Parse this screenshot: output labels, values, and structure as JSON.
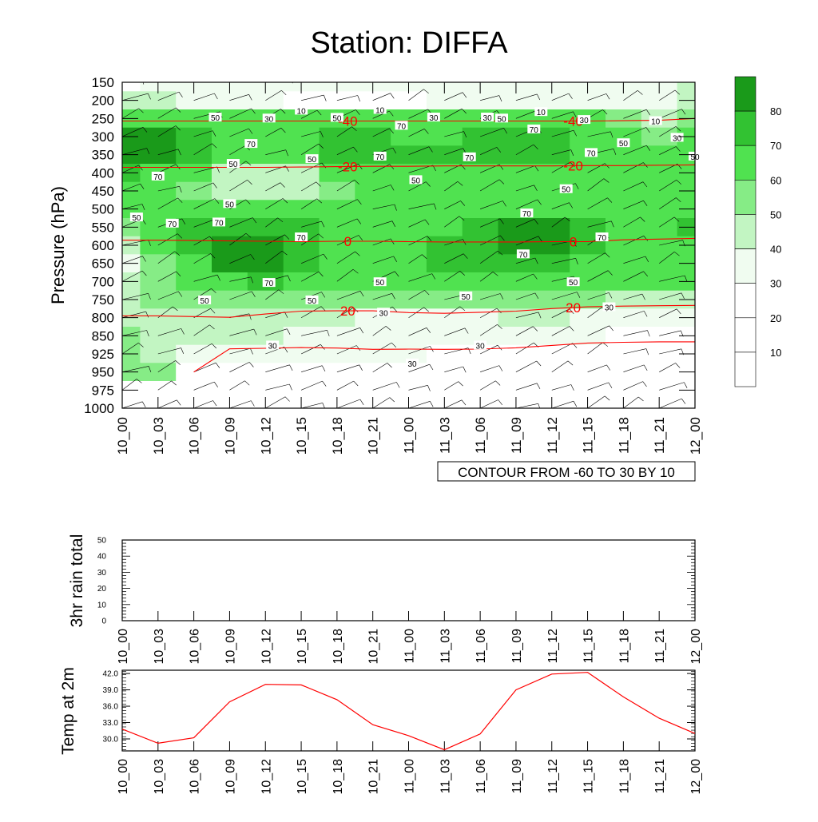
{
  "title": "Station: DIFFA",
  "x_ticks": [
    "10_00",
    "10_03",
    "10_06",
    "10_09",
    "10_12",
    "10_15",
    "10_18",
    "10_21",
    "11_00",
    "11_03",
    "11_06",
    "11_09",
    "11_12",
    "11_15",
    "11_18",
    "11_21",
    "12_00"
  ],
  "contour_note": "CONTOUR FROM -60 TO 30 BY 10",
  "colors": {
    "fills": [
      "#ffffff",
      "#ffffff",
      "#ffffff",
      "#f0fcf0",
      "#c2f5c2",
      "#86ec86",
      "#50e250",
      "#32c232",
      "#1a9a1a"
    ],
    "temp_line": "#ff0000",
    "barb": "#000000"
  },
  "colorbar": {
    "labels": [
      "80",
      "70",
      "60",
      "50",
      "40",
      "30",
      "20",
      "10"
    ]
  },
  "chart_data": [
    {
      "type": "heatmap",
      "title": "Station: DIFFA",
      "ylabel": "Pressure (hPa)",
      "xlabel": "",
      "y_levels": [
        150,
        200,
        250,
        300,
        350,
        400,
        450,
        500,
        550,
        600,
        650,
        700,
        750,
        800,
        850,
        925,
        950,
        975,
        1000
      ],
      "y_scale": "categorical-reversed",
      "x_categories": [
        "10_00",
        "10_03",
        "10_06",
        "10_09",
        "10_12",
        "10_15",
        "10_18",
        "10_21",
        "11_00",
        "11_03",
        "11_06",
        "11_09",
        "11_12",
        "11_15",
        "11_18",
        "11_21",
        "12_00"
      ],
      "fill_levels": [
        10,
        20,
        30,
        40,
        50,
        60,
        70,
        80
      ],
      "fill_variable_contours_labeled": [
        10,
        30,
        50,
        70
      ],
      "humidity_grid_approx": [
        [
          20,
          30,
          30,
          30,
          30,
          30,
          30,
          30,
          30,
          30,
          30,
          30,
          30,
          30,
          30,
          30,
          40
        ],
        [
          40,
          40,
          30,
          30,
          30,
          20,
          20,
          20,
          20,
          30,
          30,
          30,
          30,
          30,
          30,
          30,
          40
        ],
        [
          60,
          60,
          60,
          60,
          60,
          60,
          60,
          60,
          60,
          60,
          60,
          60,
          60,
          60,
          50,
          40,
          50
        ],
        [
          80,
          80,
          70,
          60,
          60,
          60,
          70,
          70,
          60,
          60,
          70,
          70,
          70,
          60,
          60,
          50,
          60
        ],
        [
          80,
          80,
          70,
          60,
          60,
          60,
          70,
          70,
          70,
          70,
          70,
          70,
          70,
          60,
          60,
          60,
          60
        ],
        [
          70,
          60,
          60,
          40,
          40,
          40,
          60,
          60,
          60,
          60,
          60,
          60,
          60,
          60,
          60,
          60,
          60
        ],
        [
          60,
          60,
          50,
          40,
          40,
          40,
          50,
          60,
          60,
          60,
          60,
          60,
          60,
          60,
          60,
          60,
          60
        ],
        [
          60,
          60,
          60,
          60,
          60,
          60,
          60,
          60,
          60,
          60,
          60,
          60,
          60,
          60,
          60,
          60,
          60
        ],
        [
          50,
          60,
          70,
          70,
          70,
          70,
          60,
          60,
          60,
          60,
          70,
          80,
          80,
          70,
          60,
          60,
          70
        ],
        [
          40,
          60,
          70,
          80,
          80,
          70,
          60,
          60,
          60,
          70,
          70,
          80,
          80,
          70,
          60,
          60,
          60
        ],
        [
          30,
          50,
          60,
          80,
          80,
          70,
          60,
          60,
          60,
          70,
          70,
          70,
          70,
          60,
          60,
          60,
          60
        ],
        [
          40,
          50,
          60,
          60,
          70,
          60,
          60,
          60,
          60,
          60,
          60,
          60,
          60,
          60,
          60,
          60,
          60
        ],
        [
          40,
          50,
          50,
          50,
          50,
          50,
          50,
          50,
          50,
          50,
          50,
          50,
          50,
          50,
          40,
          40,
          40
        ],
        [
          40,
          40,
          40,
          40,
          40,
          40,
          40,
          30,
          30,
          30,
          30,
          40,
          40,
          30,
          30,
          30,
          30
        ],
        [
          50,
          40,
          40,
          40,
          40,
          30,
          30,
          30,
          30,
          30,
          30,
          30,
          30,
          30,
          20,
          20,
          20
        ],
        [
          50,
          40,
          30,
          30,
          30,
          30,
          30,
          30,
          30,
          20,
          20,
          20,
          20,
          20,
          20,
          20,
          20
        ],
        [
          50,
          50,
          20,
          20,
          20,
          20,
          20,
          20,
          20,
          20,
          20,
          20,
          20,
          20,
          20,
          20,
          20
        ],
        [
          null,
          null,
          null,
          null,
          null,
          null,
          null,
          null,
          null,
          null,
          null,
          null,
          null,
          null,
          null,
          null,
          null
        ],
        [
          null,
          null,
          null,
          null,
          null,
          null,
          null,
          null,
          null,
          null,
          null,
          null,
          null,
          null,
          null,
          null,
          null
        ]
      ],
      "temperature_contours": [
        {
          "value": -40,
          "label": "-40",
          "pressure_by_time": [
            257,
            257,
            257,
            257,
            257,
            257,
            257,
            257,
            257,
            257,
            257,
            257,
            257,
            257,
            256,
            255,
            250
          ]
        },
        {
          "value": -20,
          "label": "-20",
          "pressure_by_time": [
            385,
            385,
            385,
            385,
            385,
            384,
            383,
            382,
            382,
            381,
            381,
            381,
            381,
            380,
            380,
            379,
            378
          ]
        },
        {
          "value": 0,
          "label": "0",
          "pressure_by_time": [
            586,
            586,
            587,
            588,
            589,
            590,
            589,
            589,
            590,
            591,
            591,
            591,
            590,
            590,
            585,
            583,
            581
          ]
        },
        {
          "value": 20,
          "label": "20",
          "pressure_by_time": [
            795,
            795,
            797,
            799,
            790,
            782,
            781,
            781,
            786,
            788,
            785,
            782,
            775,
            770,
            768,
            767,
            766
          ]
        },
        {
          "value": 30,
          "label": "30",
          "pressure_by_time": [
            null,
            null,
            950,
            904,
            902,
            899,
            901,
            906,
            905,
            906,
            905,
            900,
            890,
            880,
            877,
            875,
            875
          ]
        }
      ],
      "contour_range": {
        "from": -60,
        "to": 30,
        "by": 10
      },
      "wind_barbs": "present at all levels and times"
    },
    {
      "type": "line",
      "title": "",
      "ylabel": "3hr rain total",
      "xlabel": "",
      "x": [
        "10_00",
        "10_03",
        "10_06",
        "10_09",
        "10_12",
        "10_15",
        "10_18",
        "10_21",
        "11_00",
        "11_03",
        "11_06",
        "11_09",
        "11_12",
        "11_15",
        "11_18",
        "11_21",
        "12_00"
      ],
      "ylim": [
        0,
        50
      ],
      "y_ticks": [
        0,
        10,
        20,
        30,
        40,
        50
      ],
      "series": [
        {
          "values": [
            0,
            0,
            0,
            0,
            0,
            0,
            0,
            0,
            0,
            0,
            0,
            0,
            0,
            0,
            0,
            0,
            0
          ]
        }
      ]
    },
    {
      "type": "line",
      "title": "",
      "ylabel": "Temp at 2m",
      "xlabel": "",
      "x": [
        "10_00",
        "10_03",
        "10_06",
        "10_09",
        "10_12",
        "10_15",
        "10_18",
        "10_21",
        "11_00",
        "11_03",
        "11_06",
        "11_09",
        "11_12",
        "11_15",
        "11_18",
        "11_21",
        "12_00"
      ],
      "ylim": [
        27.8,
        42.6
      ],
      "y_ticks": [
        "30.0",
        "33.0",
        "36.0",
        "39.0",
        "42.0"
      ],
      "series": [
        {
          "values": [
            31.8,
            29.2,
            30.2,
            36.8,
            40.0,
            39.9,
            37.2,
            32.6,
            30.6,
            28.0,
            30.9,
            39.0,
            41.9,
            42.2,
            37.7,
            33.8,
            31.0
          ]
        }
      ]
    }
  ]
}
